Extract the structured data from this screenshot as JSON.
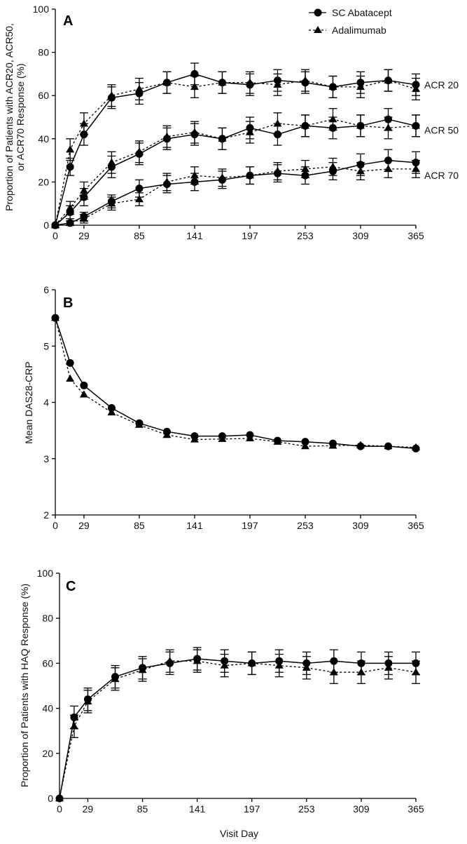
{
  "chart_data": [
    {
      "panel": "A",
      "type": "line",
      "ylabel": "Proportion of Patients with ACR20, ACR50, or ACR70 Response (%)",
      "xlabel": "",
      "ylim": [
        0,
        100
      ],
      "yticks": [
        0,
        20,
        40,
        60,
        80,
        100
      ],
      "xlim": [
        0,
        365
      ],
      "xticks": [
        0,
        29,
        85,
        141,
        197,
        253,
        309,
        365
      ],
      "x": [
        0,
        15,
        29,
        57,
        85,
        113,
        141,
        169,
        197,
        225,
        253,
        281,
        309,
        337,
        365
      ],
      "legend": {
        "placement": "top-right",
        "entries": [
          {
            "name": "SC Abatacept",
            "marker": "circle",
            "line": "solid"
          },
          {
            "name": "Adalimumab",
            "marker": "triangle",
            "line": "dashed"
          }
        ]
      },
      "series": [
        {
          "label": "ACR 20",
          "drug": "SC Abatacept",
          "values": [
            0,
            27,
            42,
            59,
            61,
            66,
            70,
            66,
            65,
            67,
            66,
            64,
            66,
            67,
            65
          ],
          "err": [
            0,
            4,
            5,
            5,
            5,
            5,
            5,
            5,
            5,
            5,
            5,
            5,
            5,
            5,
            5
          ]
        },
        {
          "label": "ACR 20",
          "drug": "Adalimumab",
          "values": [
            0,
            35,
            47,
            60,
            63,
            66,
            64,
            66,
            66,
            65,
            67,
            64,
            64,
            67,
            63
          ],
          "err": [
            0,
            5,
            5,
            5,
            5,
            5,
            5,
            5,
            5,
            5,
            5,
            5,
            5,
            5,
            5
          ]
        },
        {
          "label": "ACR 50",
          "drug": "SC Abatacept",
          "values": [
            0,
            6,
            13,
            27,
            33,
            40,
            42,
            40,
            45,
            42,
            46,
            45,
            46,
            49,
            46
          ],
          "err": [
            0,
            3,
            4,
            5,
            5,
            5,
            5,
            5,
            5,
            5,
            5,
            5,
            5,
            5,
            5
          ]
        },
        {
          "label": "ACR 50",
          "drug": "Adalimumab",
          "values": [
            0,
            8,
            16,
            29,
            34,
            41,
            43,
            40,
            43,
            47,
            46,
            49,
            46,
            45,
            46
          ],
          "err": [
            0,
            3,
            4,
            5,
            5,
            5,
            5,
            5,
            5,
            5,
            5,
            5,
            5,
            5,
            5
          ]
        },
        {
          "label": "ACR 70",
          "drug": "SC Abatacept",
          "values": [
            0,
            1,
            4,
            11,
            17,
            19,
            20,
            21,
            23,
            24,
            23,
            25,
            28,
            30,
            29
          ],
          "err": [
            0,
            1,
            2,
            3,
            4,
            4,
            4,
            4,
            4,
            4,
            4,
            4,
            5,
            5,
            5
          ]
        },
        {
          "label": "ACR 70",
          "drug": "Adalimumab",
          "values": [
            0,
            1,
            3,
            10,
            12,
            20,
            23,
            22,
            23,
            25,
            26,
            27,
            25,
            26,
            26
          ],
          "err": [
            0,
            1,
            2,
            3,
            3,
            4,
            4,
            4,
            4,
            4,
            4,
            4,
            4,
            4,
            4
          ]
        }
      ]
    },
    {
      "panel": "B",
      "type": "line",
      "ylabel": "Mean DAS28-CRP",
      "xlabel": "",
      "ylim": [
        2,
        6
      ],
      "yticks": [
        2,
        3,
        4,
        5,
        6
      ],
      "xlim": [
        0,
        365
      ],
      "xticks": [
        0,
        29,
        85,
        141,
        197,
        253,
        309,
        365
      ],
      "x": [
        0,
        15,
        29,
        57,
        85,
        113,
        141,
        169,
        197,
        225,
        253,
        281,
        309,
        337,
        365
      ],
      "series": [
        {
          "drug": "SC Abatacept",
          "values": [
            5.5,
            4.7,
            4.3,
            3.9,
            3.63,
            3.48,
            3.4,
            3.4,
            3.42,
            3.32,
            3.3,
            3.27,
            3.22,
            3.22,
            3.18
          ]
        },
        {
          "drug": "Adalimumab",
          "values": [
            5.5,
            4.42,
            4.14,
            3.82,
            3.6,
            3.42,
            3.34,
            3.35,
            3.36,
            3.3,
            3.22,
            3.23,
            3.24,
            3.22,
            3.2
          ]
        }
      ]
    },
    {
      "panel": "C",
      "type": "line",
      "ylabel": "Proportion of Patients with HAQ Response (%)",
      "xlabel": "Visit Day",
      "ylim": [
        0,
        100
      ],
      "yticks": [
        0,
        20,
        40,
        60,
        80,
        100
      ],
      "xlim": [
        0,
        365
      ],
      "xticks": [
        0,
        29,
        85,
        141,
        197,
        253,
        309,
        365
      ],
      "x": [
        0,
        15,
        29,
        57,
        85,
        113,
        141,
        169,
        197,
        225,
        253,
        281,
        309,
        337,
        365
      ],
      "series": [
        {
          "drug": "SC Abatacept",
          "values": [
            0,
            36,
            44,
            54,
            58,
            60,
            62,
            61,
            60,
            61,
            60,
            61,
            60,
            60,
            60
          ],
          "err": [
            0,
            5,
            5,
            5,
            5,
            5,
            5,
            5,
            5,
            5,
            5,
            5,
            5,
            5,
            5
          ]
        },
        {
          "drug": "Adalimumab",
          "values": [
            0,
            32,
            43,
            53,
            57,
            61,
            61,
            59,
            60,
            59,
            58,
            56,
            56,
            58,
            56
          ],
          "err": [
            0,
            5,
            5,
            5,
            5,
            5,
            5,
            5,
            5,
            5,
            5,
            5,
            5,
            5,
            5
          ]
        }
      ]
    }
  ],
  "colors": {
    "ink": "#000000",
    "background": "#ffffff"
  }
}
